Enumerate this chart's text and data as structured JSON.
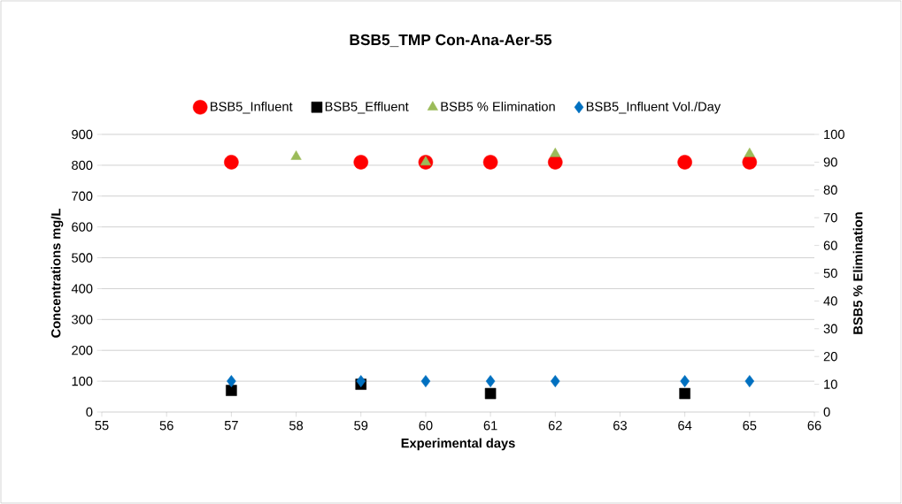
{
  "chart_data": {
    "type": "scatter",
    "title": "BSB5_TMP Con-Ana-Aer-55",
    "xlabel": "Experimental days",
    "ylabel": "Concentrations mg/L",
    "y2label": "BSB5 % Elimination",
    "series": [
      {
        "name": "BSB5_Influent",
        "color": "#ff0000",
        "marker": "circle",
        "x": [
          57,
          59,
          60,
          61,
          62,
          64,
          65
        ],
        "values": [
          810,
          810,
          810,
          810,
          810,
          810,
          810
        ]
      },
      {
        "name": "BSB5_Effluent",
        "color": "#000000",
        "marker": "square",
        "x": [
          57,
          59,
          61,
          64
        ],
        "values": [
          70,
          90,
          60,
          60
        ]
      },
      {
        "name": "BSB5 % Elimination",
        "color": "#9bbb59",
        "marker": "triangle",
        "axis": "y2",
        "x": [
          58,
          60,
          62,
          65
        ],
        "values": [
          92,
          90,
          93,
          93
        ]
      },
      {
        "name": "BSB5_Influent Vol./Day",
        "color": "#0070c0",
        "marker": "diamond",
        "x": [
          57,
          59,
          60,
          61,
          62,
          64,
          65
        ],
        "values": [
          100,
          100,
          100,
          100,
          100,
          100,
          100
        ]
      }
    ],
    "xlim": [
      55,
      66
    ],
    "xticks": [
      55,
      56,
      57,
      58,
      59,
      60,
      61,
      62,
      63,
      64,
      65,
      66
    ],
    "ylim": [
      0,
      900
    ],
    "yticks": [
      0,
      100,
      200,
      300,
      400,
      500,
      600,
      700,
      800,
      900
    ],
    "y2lim": [
      0,
      100
    ],
    "y2ticks": [
      0,
      10,
      20,
      30,
      40,
      50,
      60,
      70,
      80,
      90,
      100
    ],
    "grid": "y",
    "legend": "top"
  }
}
